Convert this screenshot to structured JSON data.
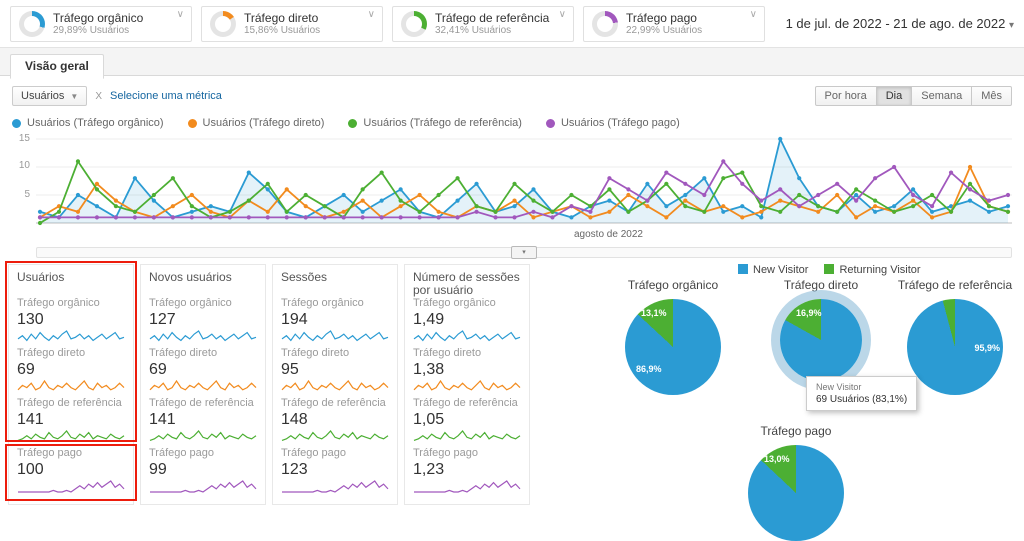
{
  "colors": {
    "annotation": "#ed1c0c",
    "link": "#1566a0"
  },
  "segment_colors": {
    "organic": "#2b9bd3",
    "direct": "#f28b1e",
    "referral": "#4caf33",
    "paid": "#a158bd"
  },
  "header": {
    "date_range": "1 de jul. de 2022 - 21 de ago. de 2022",
    "segments": [
      {
        "title": "Tráfego orgânico",
        "subtitle": "29,89% Usuários",
        "pct": 29.89,
        "color": "#2b9bd3"
      },
      {
        "title": "Tráfego direto",
        "subtitle": "15,86% Usuários",
        "pct": 15.86,
        "color": "#f28b1e"
      },
      {
        "title": "Tráfego de referência",
        "subtitle": "32,41% Usuários",
        "pct": 32.41,
        "color": "#4caf33"
      },
      {
        "title": "Tráfego pago",
        "subtitle": "22,99% Usuários",
        "pct": 22.99,
        "color": "#a158bd"
      }
    ]
  },
  "tabs": {
    "overview": "Visão geral"
  },
  "toolbar": {
    "metric_select": "Usuários",
    "vs_label": "X",
    "add_metric_label": "Selecione uma métrica",
    "granularity": [
      "Por hora",
      "Dia",
      "Semana",
      "Mês"
    ],
    "granularity_active": "Dia"
  },
  "chart_data": {
    "type": "line",
    "title": "Usuários por dia por segmento",
    "x_label": "agosto de 2022",
    "x_range": [
      "1 de jul. de 2022",
      "21 de ago. de 2022"
    ],
    "y_ticks": [
      5,
      10,
      15
    ],
    "y_max": 15,
    "series": [
      {
        "name": "Usuários (Tráfego orgânico)",
        "color": "#2b9bd3",
        "fill": true,
        "values": [
          2,
          1,
          5,
          3,
          1,
          8,
          4,
          1,
          2,
          3,
          2,
          9,
          6,
          2,
          1,
          3,
          5,
          2,
          4,
          6,
          2,
          1,
          4,
          7,
          2,
          3,
          6,
          2,
          1,
          3,
          4,
          2,
          7,
          3,
          5,
          8,
          2,
          3,
          1,
          15,
          8,
          3,
          2,
          5,
          2,
          3,
          6,
          2,
          3,
          4,
          2,
          3
        ]
      },
      {
        "name": "Usuários (Tráfego direto)",
        "color": "#f28b1e",
        "values": [
          1,
          3,
          2,
          7,
          4,
          2,
          1,
          3,
          5,
          2,
          1,
          4,
          2,
          6,
          3,
          1,
          2,
          4,
          1,
          3,
          5,
          2,
          1,
          3,
          2,
          4,
          1,
          2,
          3,
          1,
          2,
          5,
          3,
          1,
          4,
          2,
          3,
          1,
          2,
          4,
          3,
          2,
          5,
          1,
          3,
          2,
          4,
          1,
          2,
          10,
          3,
          2
        ]
      },
      {
        "name": "Usuários (Tráfego de referência)",
        "color": "#4caf33",
        "values": [
          0,
          2,
          11,
          6,
          3,
          2,
          5,
          8,
          3,
          1,
          2,
          4,
          7,
          2,
          5,
          3,
          1,
          6,
          9,
          4,
          2,
          5,
          8,
          3,
          2,
          7,
          4,
          2,
          5,
          3,
          6,
          2,
          4,
          7,
          3,
          2,
          8,
          9,
          3,
          2,
          5,
          3,
          2,
          6,
          4,
          2,
          3,
          5,
          2,
          7,
          3,
          2
        ]
      },
      {
        "name": "Usuários (Tráfego pago)",
        "color": "#a158bd",
        "values": [
          1,
          1,
          1,
          1,
          1,
          1,
          1,
          1,
          1,
          1,
          1,
          1,
          1,
          1,
          1,
          1,
          1,
          1,
          1,
          1,
          1,
          1,
          1,
          2,
          1,
          1,
          2,
          1,
          3,
          2,
          8,
          6,
          4,
          9,
          7,
          5,
          11,
          7,
          4,
          6,
          3,
          5,
          7,
          4,
          8,
          10,
          5,
          3,
          9,
          6,
          4,
          5
        ]
      }
    ]
  },
  "sparks": {
    "organic": [
      2,
      4,
      1,
      5,
      2,
      6,
      3,
      1,
      4,
      2,
      5,
      7,
      2,
      3,
      5,
      2,
      4,
      1,
      3,
      5,
      2,
      4,
      6,
      2,
      3
    ],
    "direct": [
      1,
      3,
      2,
      4,
      1,
      2,
      5,
      2,
      1,
      3,
      2,
      4,
      2,
      1,
      3,
      5,
      2,
      1,
      4,
      2,
      3,
      1,
      2,
      4,
      2
    ],
    "referral": [
      1,
      2,
      4,
      2,
      5,
      3,
      2,
      6,
      3,
      2,
      4,
      7,
      3,
      2,
      5,
      3,
      6,
      2,
      4,
      3,
      2,
      5,
      3,
      2,
      4
    ],
    "paid": [
      0,
      0,
      0,
      0,
      0,
      0,
      0,
      0,
      1,
      0,
      0,
      1,
      0,
      2,
      4,
      2,
      5,
      3,
      6,
      3,
      5,
      7,
      3,
      5,
      2
    ]
  },
  "metrics": {
    "columns": [
      {
        "header": "Usuários",
        "rows": [
          {
            "label": "Tráfego orgânico",
            "value": "130",
            "segment": "organic"
          },
          {
            "label": "Tráfego direto",
            "value": "69",
            "segment": "direct"
          },
          {
            "label": "Tráfego de referência",
            "value": "141",
            "segment": "referral"
          },
          {
            "label": "Tráfego pago",
            "value": "100",
            "segment": "paid"
          }
        ]
      },
      {
        "header": "Novos usuários",
        "rows": [
          {
            "label": "Tráfego orgânico",
            "value": "127",
            "segment": "organic"
          },
          {
            "label": "Tráfego direto",
            "value": "69",
            "segment": "direct"
          },
          {
            "label": "Tráfego de referência",
            "value": "141",
            "segment": "referral"
          },
          {
            "label": "Tráfego pago",
            "value": "99",
            "segment": "paid"
          }
        ]
      },
      {
        "header": "Sessões",
        "rows": [
          {
            "label": "Tráfego orgânico",
            "value": "194",
            "segment": "organic"
          },
          {
            "label": "Tráfego direto",
            "value": "95",
            "segment": "direct"
          },
          {
            "label": "Tráfego de referência",
            "value": "148",
            "segment": "referral"
          },
          {
            "label": "Tráfego pago",
            "value": "123",
            "segment": "paid"
          }
        ]
      },
      {
        "header": "Número de sessões por usuário",
        "rows": [
          {
            "label": "Tráfego orgânico",
            "value": "1,49",
            "segment": "organic"
          },
          {
            "label": "Tráfego direto",
            "value": "1,38",
            "segment": "direct"
          },
          {
            "label": "Tráfego de referência",
            "value": "1,05",
            "segment": "referral"
          },
          {
            "label": "Tráfego pago",
            "value": "1,23",
            "segment": "paid"
          }
        ]
      }
    ]
  },
  "visitor_legend": {
    "new_label": "New Visitor",
    "returning_label": "Returning Visitor",
    "new_color": "#2b9bd3",
    "returning_color": "#4caf33"
  },
  "pies": [
    {
      "title": "Tráfego orgânico",
      "returning_pct": 13.1,
      "green_label": "13,1%",
      "blue_label": "86,9%"
    },
    {
      "title": "Tráfego direto",
      "returning_pct": 16.9,
      "green_label": "16,9%",
      "blue_label": "",
      "highlighted": true
    },
    {
      "title": "Tráfego de referência",
      "returning_pct": 4.1,
      "green_label": "",
      "blue_label": "95,9%"
    },
    {
      "title": "Tráfego pago",
      "returning_pct": 13.0,
      "green_label": "13,0%",
      "blue_label": ""
    }
  ],
  "tooltip": {
    "line1": "New Visitor",
    "line2": "69 Usuários (83,1%)"
  }
}
